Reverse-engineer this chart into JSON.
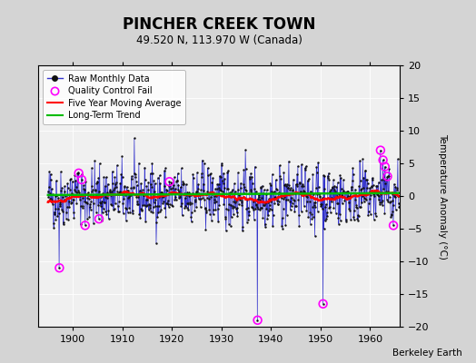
{
  "title": "PINCHER CREEK TOWN",
  "subtitle": "49.520 N, 113.970 W (Canada)",
  "ylabel": "Temperature Anomaly (°C)",
  "credit": "Berkeley Earth",
  "year_start": 1895,
  "year_end": 1965,
  "ylim": [
    -20,
    20
  ],
  "yticks": [
    -20,
    -15,
    -10,
    -5,
    0,
    5,
    10,
    15,
    20
  ],
  "figure_bg": "#d4d4d4",
  "plot_bg": "#f0f0f0",
  "raw_line_color": "#3333cc",
  "raw_dot_color": "#111111",
  "qc_fail_color": "#ff00ff",
  "moving_avg_color": "#ff0000",
  "trend_color": "#00bb00",
  "seed": 42,
  "qc_years": [
    1897.3,
    1901.2,
    1901.8,
    1902.5,
    1905.3,
    1919.5,
    1937.3,
    1950.5,
    1962.1,
    1962.6,
    1963.0,
    1963.5,
    1964.7
  ],
  "qc_vals": [
    -11.0,
    3.5,
    2.5,
    -4.5,
    -3.5,
    2.2,
    -19.0,
    -16.5,
    7.0,
    5.5,
    4.5,
    3.0,
    -4.5
  ],
  "xticks": [
    1900,
    1910,
    1920,
    1930,
    1940,
    1950,
    1960
  ],
  "xlim_left": 1893,
  "xlim_right": 1966
}
